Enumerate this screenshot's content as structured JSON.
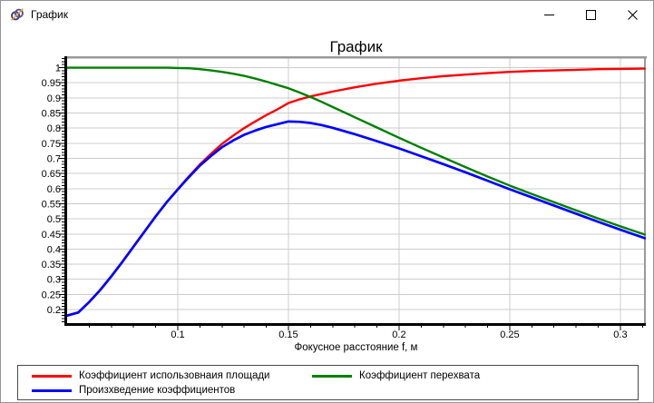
{
  "window": {
    "title": "График",
    "controls": [
      "minimize-icon",
      "maximize-icon",
      "close-icon"
    ]
  },
  "chart_data": {
    "type": "line",
    "title": "График",
    "xlabel": "Фокусное расстояние f, м",
    "ylabel": "",
    "grid": true,
    "legend_position": "bottom",
    "xlim": [
      0.05,
      0.3111
    ],
    "ylim": [
      0.155,
      1.0317
    ],
    "x_tick_values": [
      0.1,
      0.15,
      0.2,
      0.25,
      0.3
    ],
    "x_tick_labels": [
      "0.1",
      "0.15",
      "0.2",
      "0.25",
      "0.3"
    ],
    "y_tick_values": [
      1,
      0.95,
      0.9,
      0.85,
      0.8,
      0.75,
      0.7,
      0.65,
      0.6,
      0.55,
      0.5,
      0.45,
      0.4,
      0.35,
      0.3,
      0.25,
      0.2
    ],
    "y_tick_labels": [
      "1",
      "0.95",
      "0.9",
      "0.85",
      "0.8",
      "0.75",
      "0.7",
      "0.65",
      "0.6",
      "0.55",
      "0.5",
      "0.45",
      "0.4",
      "0.35",
      "0.3",
      "0.25",
      "0.2"
    ],
    "minor_tick_step": 0.01,
    "x": [
      0.05,
      0.055,
      0.06,
      0.065,
      0.07,
      0.075,
      0.08,
      0.085,
      0.09,
      0.095,
      0.1,
      0.105,
      0.11,
      0.115,
      0.12,
      0.125,
      0.13,
      0.135,
      0.14,
      0.145,
      0.15,
      0.155,
      0.16,
      0.165,
      0.17,
      0.18,
      0.19,
      0.2,
      0.21,
      0.22,
      0.23,
      0.24,
      0.25,
      0.26,
      0.27,
      0.28,
      0.29,
      0.3,
      0.311
    ],
    "series": [
      {
        "name": "Коэффициент использовнаия площади",
        "color": "#ff0000",
        "y": [
          0.18,
          0.19,
          0.225,
          0.265,
          0.31,
          0.358,
          0.408,
          0.458,
          0.508,
          0.555,
          0.598,
          0.64,
          0.68,
          0.715,
          0.748,
          0.775,
          0.8,
          0.822,
          0.843,
          0.862,
          0.883,
          0.895,
          0.905,
          0.913,
          0.921,
          0.935,
          0.947,
          0.957,
          0.965,
          0.972,
          0.977,
          0.982,
          0.986,
          0.989,
          0.991,
          0.993,
          0.995,
          0.996,
          0.997
        ]
      },
      {
        "name": "Коэффициент перехвата",
        "color": "#008000",
        "y": [
          1.0,
          1.0,
          1.0,
          1.0,
          1.0,
          1.0,
          1.0,
          1.0,
          1.0,
          1.0,
          0.999,
          0.998,
          0.995,
          0.991,
          0.986,
          0.98,
          0.973,
          0.964,
          0.954,
          0.943,
          0.932,
          0.918,
          0.903,
          0.887,
          0.87,
          0.836,
          0.802,
          0.768,
          0.735,
          0.703,
          0.671,
          0.64,
          0.61,
          0.582,
          0.555,
          0.528,
          0.501,
          0.475,
          0.448
        ]
      },
      {
        "name": "Произхведение коэффициентов",
        "color": "#0000ff",
        "y": [
          0.18,
          0.19,
          0.225,
          0.265,
          0.31,
          0.358,
          0.408,
          0.458,
          0.508,
          0.555,
          0.597,
          0.638,
          0.676,
          0.708,
          0.737,
          0.759,
          0.778,
          0.792,
          0.804,
          0.813,
          0.822,
          0.821,
          0.817,
          0.81,
          0.801,
          0.78,
          0.757,
          0.733,
          0.707,
          0.681,
          0.654,
          0.626,
          0.598,
          0.571,
          0.544,
          0.517,
          0.49,
          0.464,
          0.436
        ]
      }
    ]
  }
}
